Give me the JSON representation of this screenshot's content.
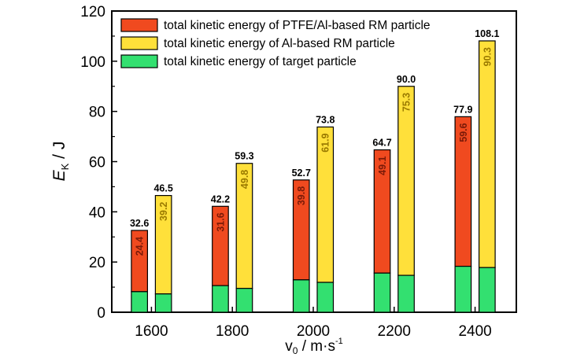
{
  "chart_data": {
    "type": "bar",
    "ylabel_main": "E",
    "ylabel_sub": "K",
    "ylabel_unit": " / J",
    "xlabel_main": "v",
    "xlabel_sub": "0",
    "xlabel_unit": " / m·s",
    "xlabel_sup": "-1",
    "ylim": [
      0,
      120
    ],
    "yticks": [
      0,
      20,
      40,
      60,
      80,
      100,
      120
    ],
    "categories": [
      "1600",
      "1800",
      "2000",
      "2200",
      "2400"
    ],
    "legend": {
      "position": "top-left",
      "entries": [
        {
          "label": "total kinetic energy of PTFE/Al-based RM particle",
          "color": "#f04a1f"
        },
        {
          "label": "total kinetic energy of Al-based RM particle",
          "color": "#ffe03a"
        },
        {
          "label": "total kinetic energy of target particle",
          "color": "#33e070"
        }
      ]
    },
    "groups": [
      {
        "category": "1600",
        "bars": [
          {
            "kind": "ptfe",
            "total": 32.6,
            "total_label": "32.6",
            "projectile": 24.4,
            "projectile_label": "24.4",
            "target": 8.2
          },
          {
            "kind": "al",
            "total": 46.5,
            "total_label": "46.5",
            "projectile": 39.2,
            "projectile_label": "39.2",
            "target": 7.3
          }
        ]
      },
      {
        "category": "1800",
        "bars": [
          {
            "kind": "ptfe",
            "total": 42.2,
            "total_label": "42.2",
            "projectile": 31.6,
            "projectile_label": "31.6",
            "target": 10.6
          },
          {
            "kind": "al",
            "total": 59.3,
            "total_label": "59.3",
            "projectile": 49.8,
            "projectile_label": "49.8",
            "target": 9.5
          }
        ]
      },
      {
        "category": "2000",
        "bars": [
          {
            "kind": "ptfe",
            "total": 52.7,
            "total_label": "52.7",
            "projectile": 39.8,
            "projectile_label": "39.8",
            "target": 12.9
          },
          {
            "kind": "al",
            "total": 73.8,
            "total_label": "73.8",
            "projectile": 61.9,
            "projectile_label": "61.9",
            "target": 11.9
          }
        ]
      },
      {
        "category": "2200",
        "bars": [
          {
            "kind": "ptfe",
            "total": 64.7,
            "total_label": "64.7",
            "projectile": 49.1,
            "projectile_label": "49.1",
            "target": 15.6
          },
          {
            "kind": "al",
            "total": 90.0,
            "total_label": "90.0",
            "projectile": 75.3,
            "projectile_label": "75.3",
            "target": 14.7
          }
        ]
      },
      {
        "category": "2400",
        "bars": [
          {
            "kind": "ptfe",
            "total": 77.9,
            "total_label": "77.9",
            "projectile": 59.6,
            "projectile_label": "59.6",
            "target": 18.3
          },
          {
            "kind": "al",
            "total": 108.1,
            "total_label": "108.1",
            "projectile": 90.3,
            "projectile_label": "90.3",
            "target": 17.8
          }
        ]
      }
    ],
    "colors": {
      "ptfe": "#f04a1f",
      "al": "#ffe03a",
      "target": "#33e070",
      "ptfe_text": "#7a1a08",
      "al_text": "#9a7a00"
    }
  }
}
